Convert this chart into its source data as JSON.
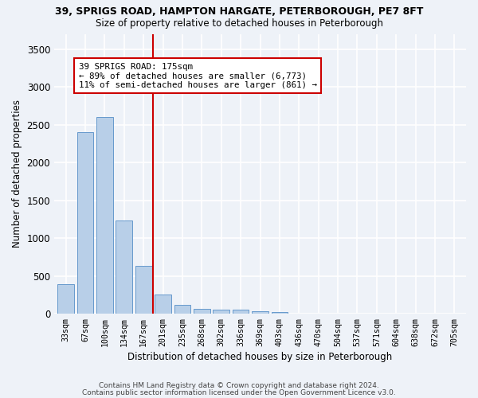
{
  "title1": "39, SPRIGS ROAD, HAMPTON HARGATE, PETERBOROUGH, PE7 8FT",
  "title2": "Size of property relative to detached houses in Peterborough",
  "xlabel": "Distribution of detached houses by size in Peterborough",
  "ylabel": "Number of detached properties",
  "categories": [
    "33sqm",
    "67sqm",
    "100sqm",
    "134sqm",
    "167sqm",
    "201sqm",
    "235sqm",
    "268sqm",
    "302sqm",
    "336sqm",
    "369sqm",
    "403sqm",
    "436sqm",
    "470sqm",
    "504sqm",
    "537sqm",
    "571sqm",
    "604sqm",
    "638sqm",
    "672sqm",
    "705sqm"
  ],
  "values": [
    390,
    2400,
    2600,
    1230,
    630,
    250,
    120,
    60,
    55,
    50,
    35,
    20,
    0,
    0,
    0,
    0,
    0,
    0,
    0,
    0,
    0
  ],
  "bar_color": "#b8cfe8",
  "bar_edge_color": "#6699cc",
  "annotation_text": "39 SPRIGS ROAD: 175sqm\n← 89% of detached houses are smaller (6,773)\n11% of semi-detached houses are larger (861) →",
  "annotation_box_color": "#ffffff",
  "annotation_edge_color": "#cc0000",
  "line_color": "#cc0000",
  "ylim": [
    0,
    3700
  ],
  "yticks": [
    0,
    500,
    1000,
    1500,
    2000,
    2500,
    3000,
    3500
  ],
  "bg_color": "#eef2f8",
  "grid_color": "#ffffff",
  "footer1": "Contains HM Land Registry data © Crown copyright and database right 2024.",
  "footer2": "Contains public sector information licensed under the Open Government Licence v3.0."
}
